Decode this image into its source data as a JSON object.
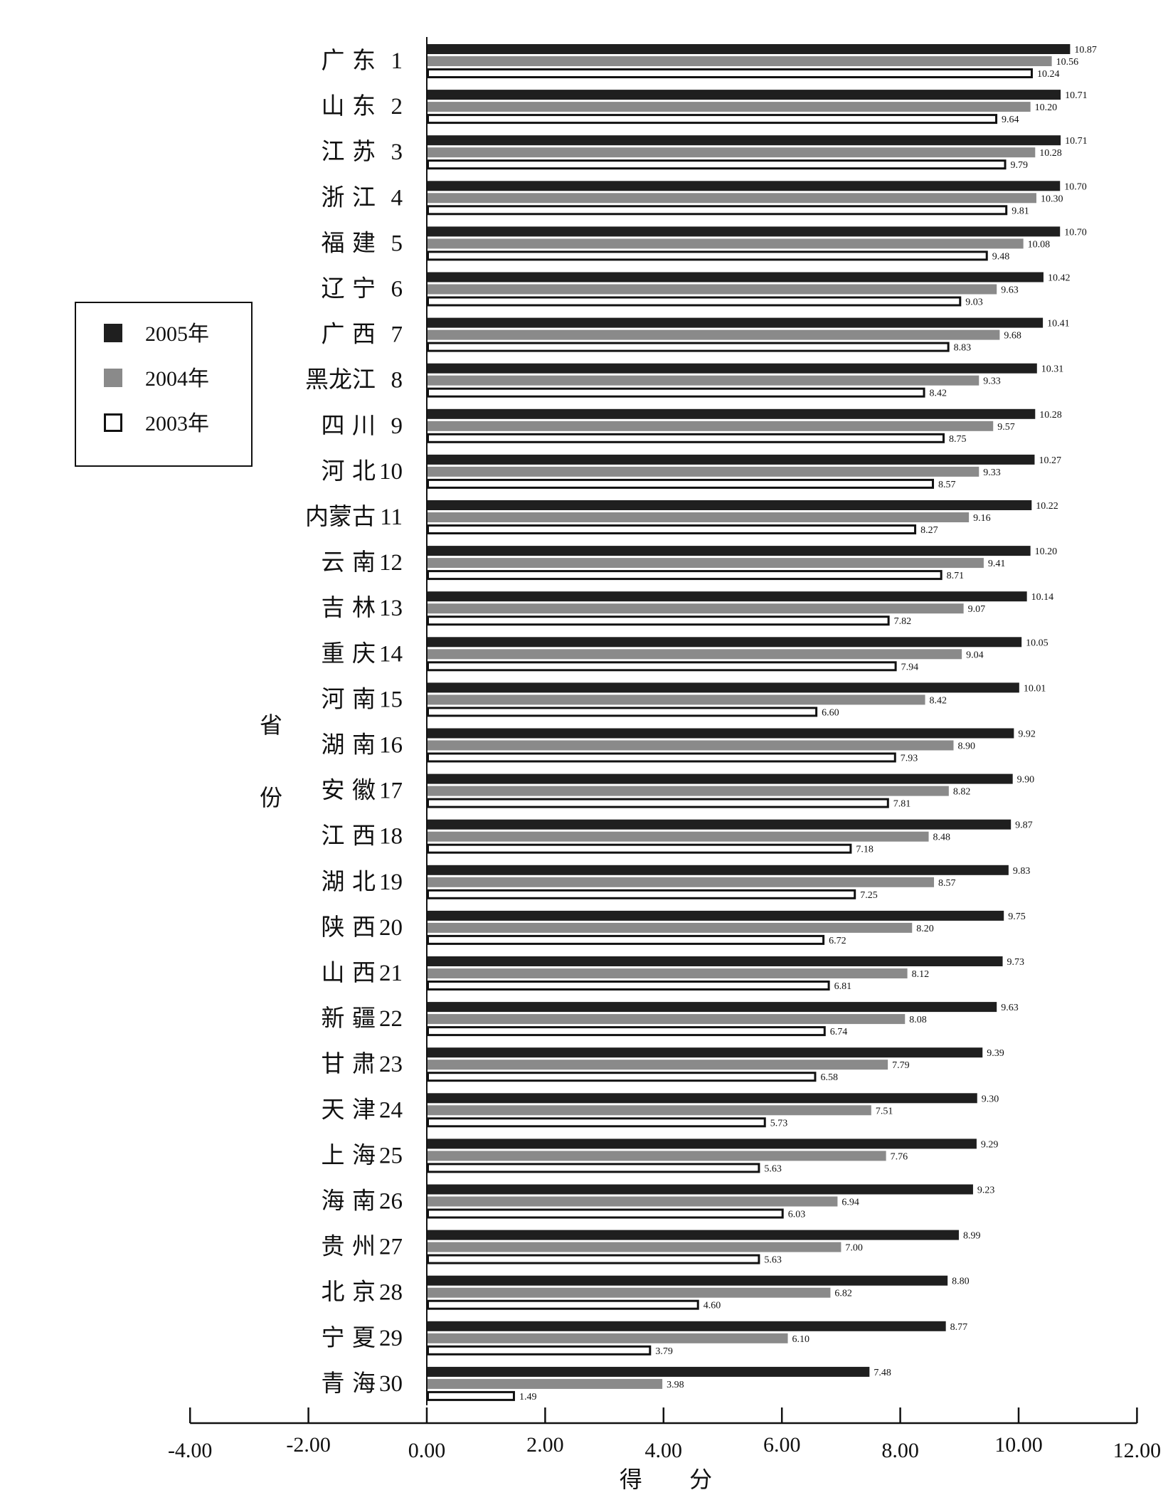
{
  "chart_data": {
    "type": "bar",
    "orientation": "horizontal",
    "title": "",
    "xlabel": "得 分",
    "ylabel": "省份",
    "xlim": [
      -4,
      12
    ],
    "xticks": [
      "-4.00",
      "-2.00",
      "0.00",
      "2.00",
      "4.00",
      "6.00",
      "8.00",
      "10.00",
      "12.00"
    ],
    "grid": false,
    "legend_position": "left",
    "categories": [
      "广 东",
      "山 东",
      "江 苏",
      "浙 江",
      "福 建",
      "辽 宁",
      "广 西",
      "黑龙江",
      "四 川",
      "河 北",
      "内蒙古",
      "云 南",
      "吉 林",
      "重 庆",
      "河 南",
      "湖 南",
      "安 徽",
      "江 西",
      "湖 北",
      "陕 西",
      "山 西",
      "新 疆",
      "甘 肃",
      "天 津",
      "上 海",
      "海 南",
      "贵 州",
      "北 京",
      "宁 夏",
      "青 海"
    ],
    "ranks": [
      "1",
      "2",
      "3",
      "4",
      "5",
      "6",
      "7",
      "8",
      "9",
      "10",
      "11",
      "12",
      "13",
      "14",
      "15",
      "16",
      "17",
      "18",
      "19",
      "20",
      "21",
      "22",
      "23",
      "24",
      "25",
      "26",
      "27",
      "28",
      "29",
      "30"
    ],
    "series": [
      {
        "name": "2005年",
        "color": "#1f1f1f",
        "values": [
          "10.87",
          "10.71",
          "10.71",
          "10.70",
          "10.70",
          "10.42",
          "10.41",
          "10.31",
          "10.28",
          "10.27",
          "10.22",
          "10.20",
          "10.14",
          "10.05",
          "10.01",
          "9.92",
          "9.90",
          "9.87",
          "9.83",
          "9.75",
          "9.73",
          "9.63",
          "9.39",
          "9.30",
          "9.29",
          "9.23",
          "8.99",
          "8.80",
          "8.77",
          "7.48"
        ]
      },
      {
        "name": "2004年",
        "color": "#8a8a8a",
        "values": [
          "10.56",
          "10.20",
          "10.28",
          "10.30",
          "10.08",
          "9.63",
          "9.68",
          "9.33",
          "9.57",
          "9.33",
          "9.16",
          "9.41",
          "9.07",
          "9.04",
          "8.42",
          "8.90",
          "8.82",
          "8.48",
          "8.57",
          "8.20",
          "8.12",
          "8.08",
          "7.79",
          "7.51",
          "7.76",
          "6.94",
          "7.00",
          "6.82",
          "6.10",
          "3.98"
        ]
      },
      {
        "name": "2003年",
        "color": "#ffffff",
        "values": [
          "10.24",
          "9.64",
          "9.79",
          "9.81",
          "9.48",
          "9.03",
          "8.83",
          "8.42",
          "8.75",
          "8.57",
          "8.27",
          "8.71",
          "7.82",
          "7.94",
          "6.60",
          "7.93",
          "7.81",
          "7.18",
          "7.25",
          "6.72",
          "6.81",
          "6.74",
          "6.58",
          "5.73",
          "5.63",
          "6.03",
          "5.63",
          "4.60",
          "3.79",
          "1.49"
        ]
      }
    ]
  }
}
